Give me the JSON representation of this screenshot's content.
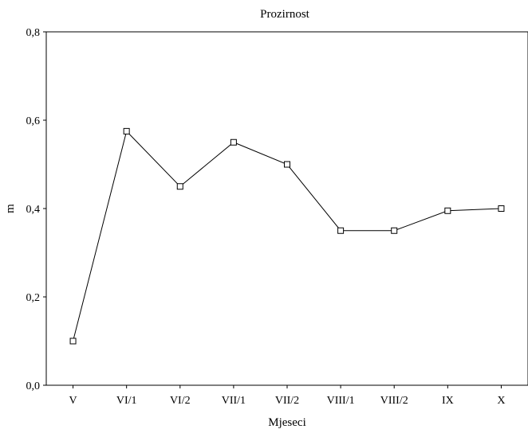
{
  "chart_data": {
    "type": "line",
    "title": "Prozirnost",
    "xlabel": "Mjeseci",
    "ylabel": "m",
    "categories": [
      "V",
      "VI/1",
      "VI/2",
      "VII/1",
      "VII/2",
      "VIII/1",
      "VIII/2",
      "IX",
      "X"
    ],
    "series": [
      {
        "values": [
          0.1,
          0.575,
          0.45,
          0.55,
          0.5,
          0.35,
          0.35,
          0.395,
          0.4
        ]
      }
    ],
    "ylim": [
      0.0,
      0.8
    ],
    "yticks": [
      0.0,
      0.2,
      0.4,
      0.6,
      0.8
    ],
    "ytick_labels": [
      "0,0",
      "0,2",
      "0,4",
      "0,6",
      "0,8"
    ],
    "grid": false,
    "legend": "none",
    "marker": "hollow-square",
    "colors": {
      "line": "#000000",
      "marker_fill": "#ffffff",
      "axes": "#000000"
    }
  }
}
